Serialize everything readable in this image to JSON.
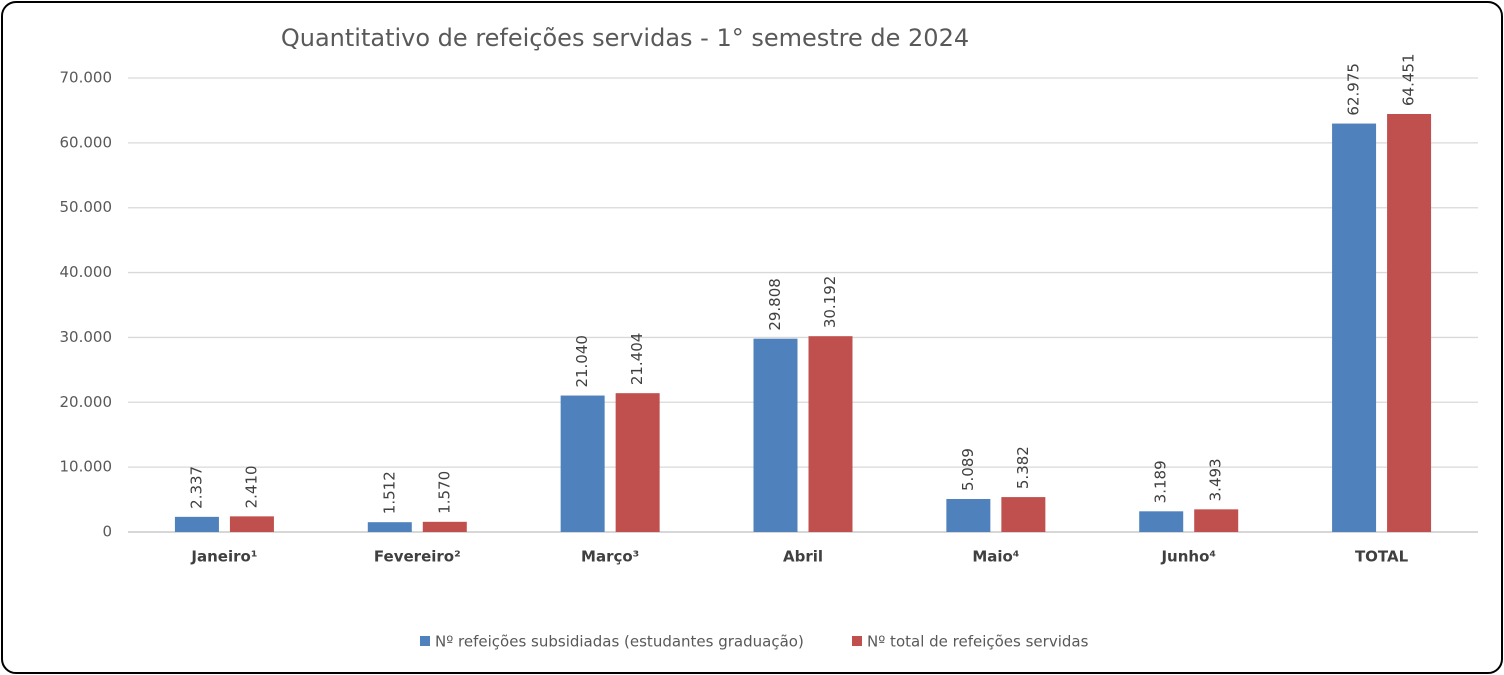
{
  "chart_data": {
    "type": "bar",
    "title": "Quantitativo de refeições servidas - 1° semestre de 2024",
    "categories": [
      "Janeiro¹",
      "Fevereiro²",
      "Março³",
      "Abril",
      "Maio⁴",
      "Junho⁴",
      "TOTAL"
    ],
    "series": [
      {
        "name": "Nº refeições subsidiadas (estudantes graduação)",
        "color": "#4f81bd",
        "values": [
          2337,
          1512,
          21040,
          29808,
          5089,
          3189,
          62975
        ],
        "value_labels": [
          "2.337",
          "1.512",
          "21.040",
          "29.808",
          "5.089",
          "3.189",
          "62.975"
        ]
      },
      {
        "name": "Nº total de refeições servidas",
        "color": "#c0504d",
        "values": [
          2410,
          1570,
          21404,
          30192,
          5382,
          3493,
          64451
        ],
        "value_labels": [
          "2.410",
          "1.570",
          "21.404",
          "30.192",
          "5.382",
          "3.493",
          "64.451"
        ]
      }
    ],
    "ylim": [
      0,
      70000
    ],
    "yticks": [
      0,
      {
        "value": 10000,
        "label": "10.000"
      },
      {
        "value": 20000,
        "label": "20.000"
      },
      {
        "value": 30000,
        "label": "30.000"
      },
      {
        "value": 40000,
        "label": "40.000"
      },
      {
        "value": 50000,
        "label": "50.000"
      },
      {
        "value": 60000,
        "label": "60.000"
      },
      {
        "value": 70000,
        "label": "70.000"
      }
    ],
    "grid": true,
    "legend": "bottom"
  }
}
